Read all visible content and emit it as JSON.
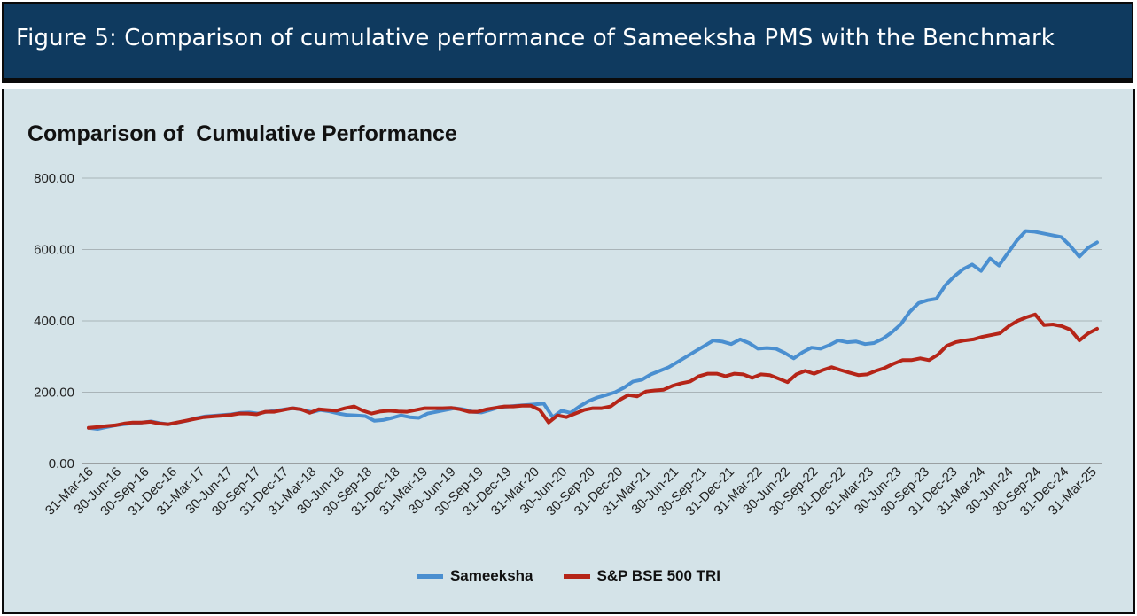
{
  "banner": {
    "title": "Figure 5: Comparison of cumulative performance of Sameeksha PMS with the Benchmark"
  },
  "chart_data": {
    "type": "line",
    "title": "Comparison of  Cumulative Performance",
    "xlabel": "",
    "ylabel": "",
    "ylim": [
      0,
      800
    ],
    "yticks": [
      "0.00",
      "200.00",
      "400.00",
      "600.00",
      "800.00"
    ],
    "grid": true,
    "legend_position": "bottom",
    "x_tick_labels": [
      "31-Mar-16",
      "30-Jun-16",
      "30-Sep-16",
      "31-Dec-16",
      "31-Mar-17",
      "30-Jun-17",
      "30-Sep-17",
      "31-Dec-17",
      "31-Mar-18",
      "30-Jun-18",
      "30-Sep-18",
      "31-Dec-18",
      "31-Mar-19",
      "30-Jun-19",
      "30-Sep-19",
      "31-Dec-19",
      "31-Mar-20",
      "30-Jun-20",
      "30-Sep-20",
      "31-Dec-20",
      "31-Mar-21",
      "30-Jun-21",
      "30-Sep-21",
      "31-Dec-21",
      "31-Mar-22",
      "30-Jun-22",
      "30-Sep-22",
      "31-Dec-22",
      "31-Mar-23",
      "30-Jun-23",
      "30-Sep-23",
      "31-Dec-23",
      "31-Mar-24",
      "30-Jun-24",
      "30-Sep-24",
      "31-Dec-24",
      "31-Mar-25"
    ],
    "series": [
      {
        "name": "Sameeksha",
        "color": "#4a8fd0",
        "values": [
          100,
          97,
          102,
          107,
          110,
          113,
          115,
          118,
          113,
          110,
          115,
          120,
          127,
          132,
          134,
          136,
          138,
          142,
          143,
          140,
          145,
          148,
          152,
          155,
          150,
          144,
          150,
          146,
          140,
          136,
          135,
          133,
          120,
          122,
          128,
          135,
          130,
          128,
          140,
          145,
          150,
          155,
          152,
          145,
          143,
          150,
          158,
          160,
          162,
          164,
          166,
          168,
          130,
          148,
          142,
          160,
          175,
          185,
          192,
          200,
          213,
          230,
          235,
          250,
          260,
          270,
          285,
          300,
          315,
          330,
          345,
          342,
          335,
          348,
          338,
          322,
          324,
          322,
          310,
          295,
          312,
          325,
          322,
          332,
          345,
          340,
          342,
          335,
          338,
          350,
          368,
          390,
          425,
          450,
          458,
          462,
          500,
          525,
          545,
          558,
          540,
          575,
          555,
          590,
          625,
          652,
          650,
          645,
          640,
          635,
          610,
          580,
          605,
          620
        ]
      },
      {
        "name": "S&P BSE 500 TRI",
        "color": "#b52518",
        "values": [
          100,
          102,
          105,
          107,
          112,
          115,
          115,
          117,
          112,
          110,
          115,
          120,
          125,
          130,
          132,
          134,
          136,
          140,
          140,
          138,
          145,
          145,
          150,
          155,
          152,
          142,
          152,
          150,
          148,
          155,
          160,
          148,
          140,
          146,
          148,
          146,
          145,
          150,
          155,
          155,
          155,
          156,
          152,
          145,
          145,
          152,
          156,
          160,
          160,
          162,
          162,
          150,
          115,
          135,
          130,
          140,
          150,
          155,
          155,
          160,
          178,
          192,
          188,
          202,
          205,
          207,
          218,
          225,
          230,
          245,
          252,
          252,
          245,
          252,
          250,
          240,
          250,
          248,
          238,
          228,
          250,
          260,
          252,
          262,
          270,
          262,
          255,
          248,
          250,
          260,
          268,
          280,
          290,
          290,
          295,
          290,
          305,
          330,
          340,
          345,
          348,
          355,
          360,
          365,
          385,
          400,
          410,
          418,
          388,
          390,
          385,
          375,
          345,
          365,
          378
        ]
      }
    ]
  }
}
